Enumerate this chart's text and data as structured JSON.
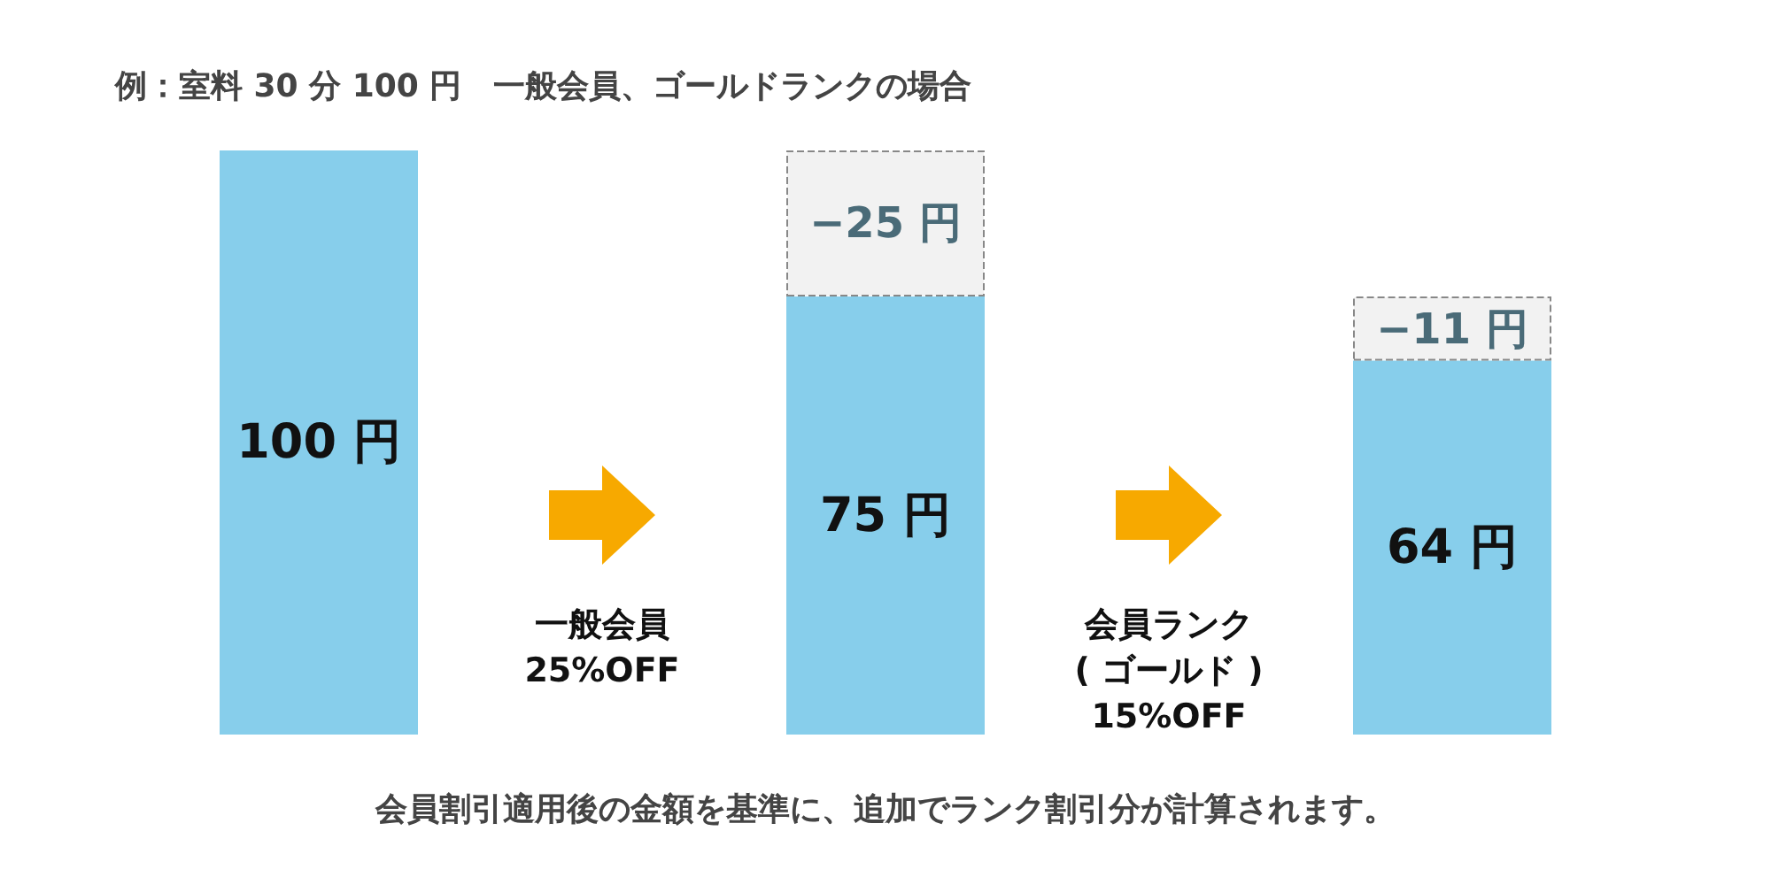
{
  "chart_data": {
    "type": "bar",
    "title": "例：室料 30 分 100 円　一般会員、ゴールドランクの場合",
    "categories": [
      null,
      null,
      null
    ],
    "stacked": true,
    "ylim": [
      0,
      100
    ],
    "tick_labels": false,
    "series": [
      {
        "color": "#87ceeb",
        "values": [
          100,
          75,
          64
        ],
        "value_labels": [
          "100 円",
          "75 円",
          "64 円"
        ]
      },
      {
        "color": "#f2f2f2",
        "values": [
          null,
          25,
          11
        ]
      }
    ],
    "annotations": [
      "−25 円",
      "−11 円",
      "一般会員\n25%OFF",
      "会員ランク\n( ゴールド )\n15%OFF",
      "会員割引適用後の金額を基準に、追加でランク割引分が計算されます。"
    ]
  }
}
